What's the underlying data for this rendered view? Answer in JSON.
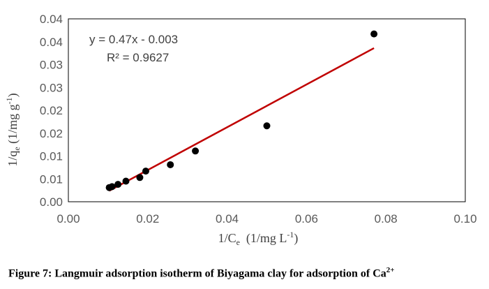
{
  "chart_data": {
    "type": "scatter",
    "xlabel": {
      "main": "1/C",
      "sub": "e",
      "rest": "  (1/mg L",
      "sup": "-1",
      "end": ")"
    },
    "ylabel": {
      "main": "1/q",
      "sub": "e",
      "rest": " (1/mg g",
      "sup": "-1",
      "end": ")"
    },
    "x_ticks": [
      "0.00",
      "0.02",
      "0.04",
      "0.06",
      "0.08",
      "0.10"
    ],
    "y_ticks": [
      "0.00",
      "0.01",
      "0.01",
      "0.02",
      "0.02",
      "0.03",
      "0.03",
      "0.04",
      "0.04"
    ],
    "xlim": [
      0,
      0.1
    ],
    "ylim": [
      0,
      0.04
    ],
    "points": [
      {
        "x": 0.0103,
        "y": 0.0031
      },
      {
        "x": 0.011,
        "y": 0.0033
      },
      {
        "x": 0.0125,
        "y": 0.0038
      },
      {
        "x": 0.0145,
        "y": 0.0045
      },
      {
        "x": 0.018,
        "y": 0.0053
      },
      {
        "x": 0.0195,
        "y": 0.0067
      },
      {
        "x": 0.0257,
        "y": 0.0081
      },
      {
        "x": 0.032,
        "y": 0.0111
      },
      {
        "x": 0.05,
        "y": 0.0166
      },
      {
        "x": 0.077,
        "y": 0.0367
      }
    ],
    "trendline": {
      "x": [
        0.0103,
        0.077
      ],
      "y": [
        0.0024,
        0.0336
      ]
    },
    "equation": "y = 0.47x - 0.003",
    "r2": "R² = 0.9627",
    "grid": false,
    "colors": {
      "points": "#000000",
      "trendline": "#c00000",
      "frame": "#000000"
    }
  },
  "caption": {
    "text": "Figure 7: Langmuir adsorption isotherm of Biyagama clay for adsorption of Ca",
    "sup": "2+"
  }
}
